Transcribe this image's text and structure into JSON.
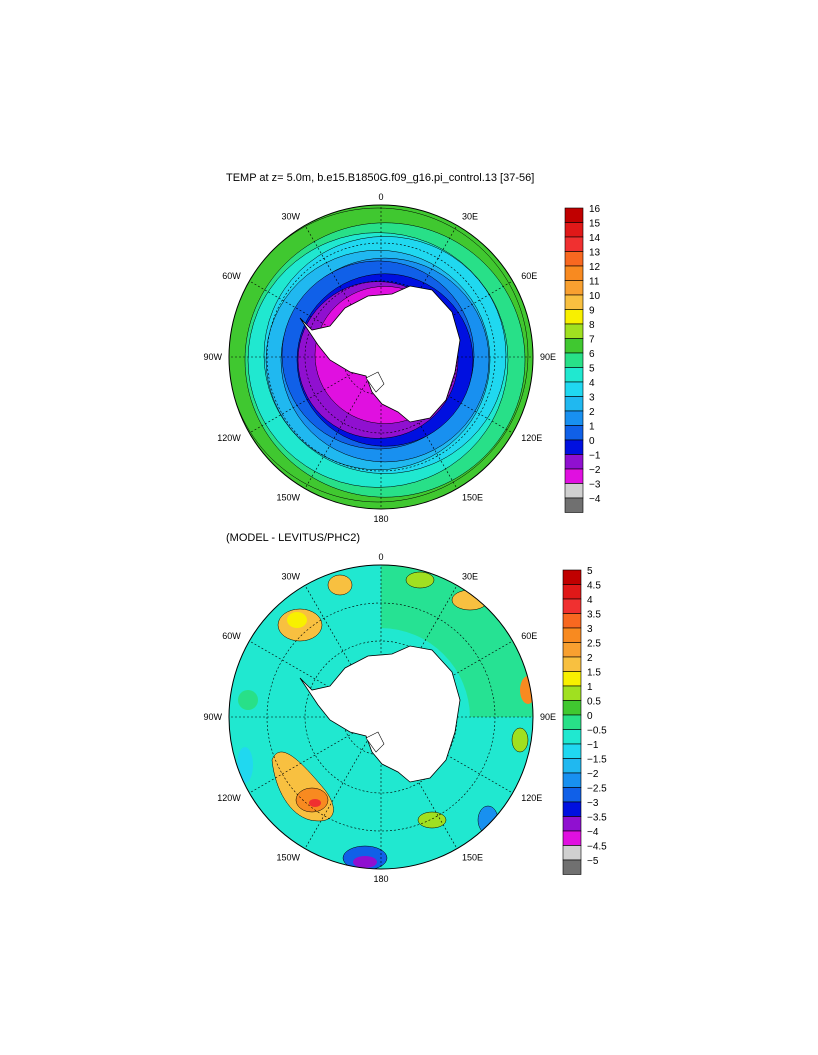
{
  "plot_top": {
    "title": "TEMP at z=   5.0m, b.e15.B1850G.f09_g16.pi_control.13 [37-56]",
    "lon_labels": [
      "0",
      "30E",
      "60E",
      "90E",
      "120E",
      "150E",
      "180",
      "150W",
      "120W",
      "90W",
      "60W",
      "30W"
    ],
    "colorbar": {
      "labels": [
        "16",
        "15",
        "14",
        "13",
        "12",
        "11",
        "10",
        "9",
        "8",
        "7",
        "6",
        "5",
        "4",
        "3",
        "2",
        "1",
        "0",
        "−1",
        "−2",
        "−3",
        "−4"
      ],
      "colors": [
        "#c00000",
        "#e01818",
        "#f03030",
        "#f86820",
        "#f88a20",
        "#f8a030",
        "#f8c040",
        "#f8f000",
        "#a0e020",
        "#40c830",
        "#28e088",
        "#20e8d0",
        "#20d8f0",
        "#20b8f0",
        "#1890f0",
        "#1060e8",
        "#0010e0",
        "#9010d0",
        "#e010e0",
        "#d0d0d0",
        "#707070"
      ]
    },
    "bands": [
      "#e010e0",
      "#9010d0",
      "#0010e0",
      "#1060e8",
      "#1890f0",
      "#20b8f0",
      "#20d8f0",
      "#20e8d0",
      "#28e088",
      "#40c830"
    ]
  },
  "plot_bottom": {
    "title": "(MODEL - LEVITUS/PHC2)",
    "lon_labels": [
      "0",
      "30E",
      "60E",
      "90E",
      "120E",
      "150E",
      "180",
      "150W",
      "120W",
      "90W",
      "60W",
      "30W"
    ],
    "colorbar": {
      "labels": [
        "5",
        "4.5",
        "4",
        "3.5",
        "3",
        "2.5",
        "2",
        "1.5",
        "1",
        "0.5",
        "0",
        "−0.5",
        "−1",
        "−1.5",
        "−2",
        "−2.5",
        "−3",
        "−3.5",
        "−4",
        "−4.5",
        "−5"
      ],
      "colors": [
        "#c00000",
        "#e01818",
        "#f03030",
        "#f86820",
        "#f88a20",
        "#f8a030",
        "#f8c040",
        "#f8f000",
        "#a0e020",
        "#40c830",
        "#28e088",
        "#20e8d0",
        "#20d8f0",
        "#20b8f0",
        "#1890f0",
        "#1060e8",
        "#0010e0",
        "#9010d0",
        "#e010e0",
        "#d0d0d0",
        "#707070"
      ]
    }
  }
}
